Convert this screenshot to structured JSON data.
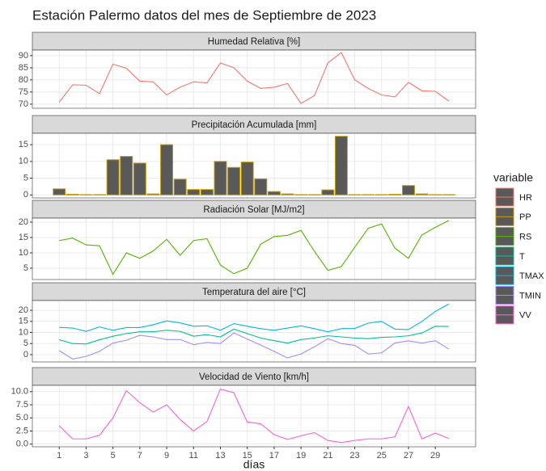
{
  "title": "Estación Palermo datos del mes de Septiembre de 2023",
  "xlabel": "días",
  "legend_title": "variable",
  "x": [
    1,
    2,
    3,
    4,
    5,
    6,
    7,
    8,
    9,
    10,
    11,
    12,
    13,
    14,
    15,
    16,
    17,
    18,
    19,
    20,
    21,
    22,
    23,
    24,
    25,
    26,
    27,
    28,
    29,
    30
  ],
  "xlim": [
    -1,
    32
  ],
  "xticks": [
    1,
    3,
    5,
    7,
    9,
    11,
    13,
    15,
    17,
    19,
    21,
    23,
    25,
    27,
    29
  ],
  "grid": true,
  "chart_data": [
    {
      "type": "line",
      "title": "Humedad Relativa [%]",
      "ylim": [
        68.3,
        92.3
      ],
      "yticks": [
        70,
        75,
        80,
        85,
        90
      ],
      "series": [
        {
          "name": "HR",
          "color": "#F8766D",
          "values": [
            70.8,
            78,
            77.8,
            74.3,
            86.5,
            84.8,
            79.5,
            79.2,
            73.8,
            77,
            79.2,
            78.8,
            87,
            85,
            79.5,
            76.5,
            77,
            78.5,
            70.3,
            73.5,
            87,
            91.3,
            80,
            76.5,
            73.8,
            73,
            79,
            75.5,
            75.3,
            71.3
          ]
        }
      ]
    },
    {
      "type": "bar",
      "title": "Precipitación Acumulada [mm]",
      "ylim": [
        -0.9,
        18.4
      ],
      "yticks": [
        0,
        5,
        10,
        15
      ],
      "bar_fill": "#595959",
      "series": [
        {
          "name": "PP",
          "color": "#C49A00",
          "values": [
            1.8,
            0.2,
            0.1,
            0.1,
            10.5,
            11.5,
            9.5,
            0.3,
            15,
            4.7,
            1.6,
            1.6,
            10,
            8.2,
            9.8,
            4.8,
            1,
            0.3,
            0.1,
            0.1,
            1.5,
            17.5,
            0.1,
            0.1,
            0.1,
            0.2,
            2.8,
            0.3,
            0.1,
            0.1
          ]
        }
      ]
    },
    {
      "type": "line",
      "title": "Radiación Solar [MJ/m2]",
      "ylim": [
        1.3,
        21.3
      ],
      "yticks": [
        5,
        10,
        15,
        20
      ],
      "series": [
        {
          "name": "RS",
          "color": "#53B400",
          "values": [
            14,
            14.8,
            12.6,
            12.3,
            3,
            10,
            8.2,
            10.6,
            14.4,
            9.2,
            14,
            14.6,
            6,
            3.2,
            5,
            12.8,
            15.3,
            15.7,
            17.3,
            10.5,
            4.3,
            5.5,
            11.8,
            18,
            19.4,
            11.5,
            8.2,
            15.8,
            18.3,
            20.5
          ]
        }
      ]
    },
    {
      "type": "line",
      "title": "Temperatura del aire [°C]",
      "ylim": [
        -3.3,
        24.4
      ],
      "yticks": [
        0,
        5,
        10,
        15,
        20
      ],
      "series": [
        {
          "name": "T",
          "color": "#00C094",
          "values": [
            6.7,
            5,
            4.8,
            6.7,
            8.3,
            9.5,
            10.3,
            10.3,
            11,
            10.5,
            8.3,
            9,
            8,
            11.5,
            9.5,
            7.5,
            6.3,
            5.2,
            6.8,
            7.5,
            8.5,
            8,
            7.5,
            7.2,
            7.8,
            8,
            8.5,
            9.8,
            12.8,
            12.7
          ]
        },
        {
          "name": "TMAX",
          "color": "#00B6EB",
          "values": [
            12.3,
            12,
            10.5,
            12.5,
            11,
            12.2,
            12.2,
            13.5,
            15.2,
            14.3,
            12.8,
            13,
            11,
            14,
            12.8,
            11.7,
            11,
            12,
            13,
            11.7,
            10.3,
            11.7,
            11.8,
            14.2,
            15,
            11.5,
            11.3,
            15,
            19.5,
            22.8
          ]
        },
        {
          "name": "TMIN",
          "color": "#A58AFF",
          "values": [
            1.8,
            -2,
            -0.8,
            1.5,
            5.2,
            6.5,
            8.7,
            8,
            6.8,
            6.8,
            4.5,
            5.5,
            5,
            9.8,
            7,
            4.3,
            1.5,
            -1.5,
            0.3,
            3.5,
            7.2,
            5,
            4.2,
            0.3,
            0.8,
            5.3,
            6.2,
            5.2,
            6.3,
            2.5
          ]
        }
      ]
    },
    {
      "type": "line",
      "title": "Velocidad de Viento [km/h]",
      "ylim": [
        -0.5,
        11.2
      ],
      "yticks": [
        {
          "value": 0,
          "label": "0.0"
        },
        2.5,
        {
          "value": 5,
          "label": "5.0"
        },
        7.5,
        {
          "value": 10,
          "label": "10.0"
        }
      ],
      "series": [
        {
          "name": "VV",
          "color": "#FB61D7",
          "values": [
            3.5,
            1,
            1,
            1.7,
            5,
            10.2,
            7.9,
            6.1,
            7.5,
            4.7,
            2.5,
            4.3,
            10.5,
            9.8,
            4.2,
            3.9,
            1.8,
            0.9,
            1.6,
            2.2,
            0.7,
            0.3,
            0.7,
            1,
            1,
            1.4,
            7.2,
            1,
            2.1,
            1.1
          ]
        }
      ]
    }
  ]
}
